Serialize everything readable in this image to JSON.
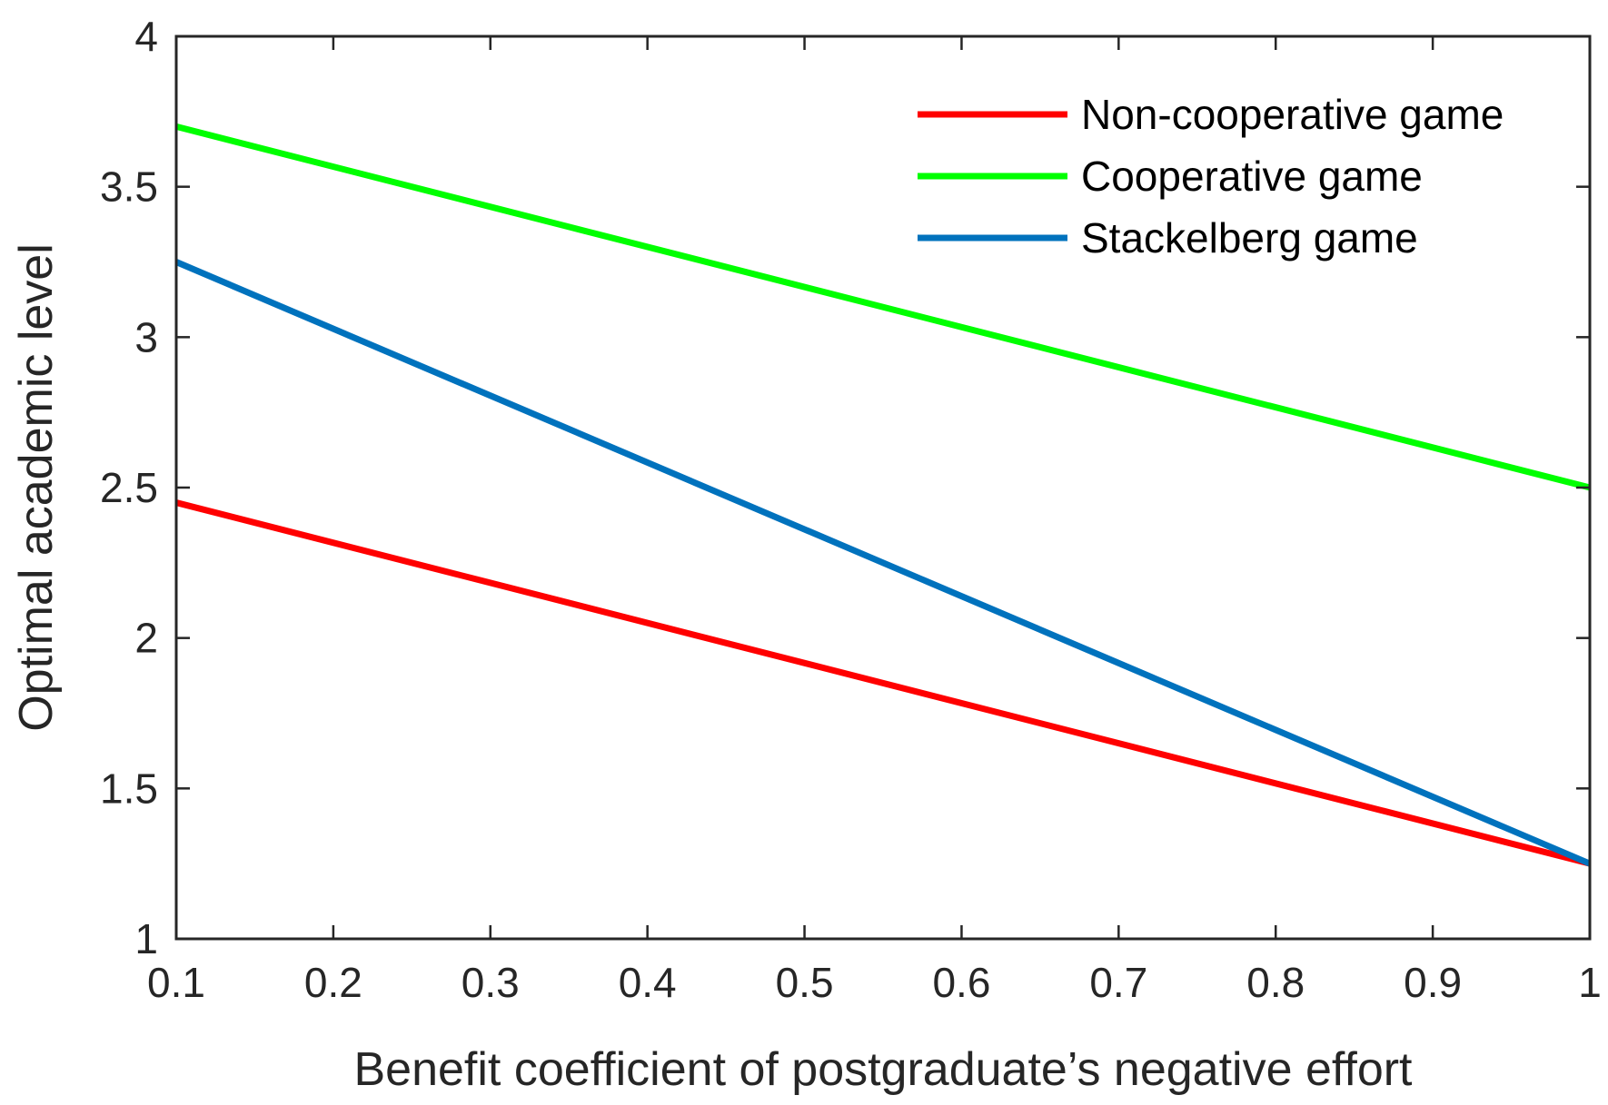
{
  "chart_data": {
    "type": "line",
    "title": "",
    "xlabel": "Benefit coefficient of postgraduate’s negative effort",
    "ylabel": "Optimal academic level",
    "xlim": [
      0.1,
      1
    ],
    "ylim": [
      1,
      4
    ],
    "xticks": [
      0.1,
      0.2,
      0.3,
      0.4,
      0.5,
      0.6,
      0.7,
      0.8,
      0.9,
      1
    ],
    "xtick_labels": [
      "0.1",
      "0.2",
      "0.3",
      "0.4",
      "0.5",
      "0.6",
      "0.7",
      "0.8",
      "0.9",
      "1"
    ],
    "yticks": [
      1,
      1.5,
      2,
      2.5,
      3,
      3.5,
      4
    ],
    "ytick_labels": [
      "1",
      "1.5",
      "2",
      "2.5",
      "3",
      "3.5",
      "4"
    ],
    "grid": false,
    "legend_position": "top-right",
    "series": [
      {
        "name": "Non-cooperative game",
        "color": "#ff0000",
        "x": [
          0.1,
          1
        ],
        "values": [
          2.45,
          1.25
        ]
      },
      {
        "name": "Cooperative game",
        "color": "#00ff00",
        "x": [
          0.1,
          1
        ],
        "values": [
          3.7,
          2.5
        ]
      },
      {
        "name": "Stackelberg game",
        "color": "#0072bd",
        "x": [
          0.1,
          1
        ],
        "values": [
          3.25,
          1.25
        ]
      }
    ]
  }
}
